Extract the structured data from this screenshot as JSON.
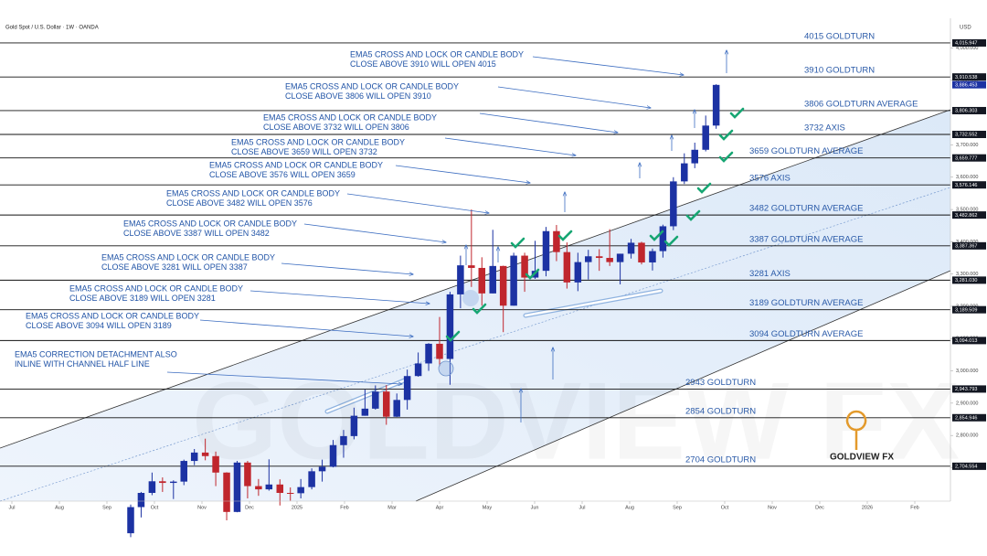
{
  "chart_data": {
    "type": "candlestick",
    "title": "Gold Spot / U.S. Dollar · 1W · OANDA",
    "y_axis_label": "USD",
    "brand": "GOLDVIEW FX",
    "up_color": "#1c32a3",
    "down_color": "#c0262d",
    "xlim": [
      -0.25,
      19.75
    ],
    "xticks": [
      {
        "value": 0,
        "label": "Jul"
      },
      {
        "value": 1,
        "label": "Aug"
      },
      {
        "value": 2,
        "label": "Sep"
      },
      {
        "value": 3,
        "label": "Oct"
      },
      {
        "value": 4,
        "label": "Nov"
      },
      {
        "value": 5,
        "label": "Dec"
      },
      {
        "value": 6,
        "label": "2025"
      },
      {
        "value": 7,
        "label": "Feb"
      },
      {
        "value": 8,
        "label": "Mar"
      },
      {
        "value": 9,
        "label": "Apr"
      },
      {
        "value": 10,
        "label": "May"
      },
      {
        "value": 11,
        "label": "Jun"
      },
      {
        "value": 12,
        "label": "Jul"
      },
      {
        "value": 13,
        "label": "Aug"
      },
      {
        "value": 14,
        "label": "Sep"
      },
      {
        "value": 15,
        "label": "Oct"
      },
      {
        "value": 16,
        "label": "Nov"
      },
      {
        "value": 17,
        "label": "Dec"
      },
      {
        "value": 18,
        "label": "2026"
      },
      {
        "value": 19,
        "label": "Feb"
      }
    ],
    "ylim": [
      2605,
      4064
    ],
    "yticks": [
      {
        "value": 2700,
        "label": "2,700.000"
      },
      {
        "value": 2800,
        "label": "2,800.000"
      },
      {
        "value": 2900,
        "label": "2,900.000"
      },
      {
        "value": 3000,
        "label": "3,000.000"
      },
      {
        "value": 3100,
        "label": "3,100.000"
      },
      {
        "value": 3200,
        "label": "3,200.000"
      },
      {
        "value": 3300,
        "label": "3,300.000"
      },
      {
        "value": 3400,
        "label": "3,400.000"
      },
      {
        "value": 3500,
        "label": "3,500.000"
      },
      {
        "value": 3600,
        "label": "3,600.000"
      },
      {
        "value": 3700,
        "label": "3,700.000"
      },
      {
        "value": 3800,
        "label": "3,800.000"
      },
      {
        "value": 3900,
        "label": "3,900.000"
      },
      {
        "value": 4000,
        "label": "4,000.000"
      }
    ],
    "x": [
      2.5,
      2.72,
      2.95,
      3.17,
      3.4,
      3.62,
      3.84,
      4.07,
      4.29,
      4.52,
      4.74,
      4.96,
      5.19,
      5.41,
      5.64,
      5.86,
      6.08,
      6.31,
      6.53,
      6.76,
      6.98,
      7.2,
      7.43,
      7.65,
      7.88,
      8.1,
      8.32,
      8.55,
      8.77,
      9.0,
      9.22,
      9.44,
      9.67,
      9.89,
      10.12,
      10.34,
      10.56,
      10.79,
      11.01,
      11.24,
      11.46,
      11.68,
      11.91,
      12.13,
      12.36,
      12.58,
      12.8,
      13.03,
      13.25,
      13.48,
      13.7,
      13.92,
      14.15,
      14.37,
      14.6,
      14.82
    ],
    "open": [
      2497,
      2578,
      2622,
      2658,
      2653,
      2657,
      2721,
      2747,
      2736,
      2685,
      2563,
      2716,
      2643,
      2633,
      2648,
      2622,
      2621,
      2640,
      2689,
      2703,
      2770,
      2798,
      2861,
      2883,
      2936,
      2858,
      2910,
      2984,
      3023,
      3084,
      3037,
      3237,
      3327,
      3319,
      3240,
      3325,
      3202,
      3357,
      3289,
      3310,
      3433,
      3368,
      3274,
      3337,
      3355,
      3350,
      3337,
      3363,
      3397,
      3336,
      3371,
      3448,
      3587,
      3643,
      3685,
      3760
    ],
    "high": [
      2586,
      2625,
      2685,
      2670,
      2661,
      2725,
      2758,
      2790,
      2750,
      2686,
      2721,
      2721,
      2665,
      2726,
      2664,
      2639,
      2665,
      2698,
      2725,
      2786,
      2817,
      2886,
      2942,
      2955,
      2956,
      2930,
      3004,
      3057,
      3086,
      3167,
      3245,
      3357,
      3500,
      3352,
      3437,
      3326,
      3366,
      3366,
      3403,
      3446,
      3452,
      3398,
      3366,
      3375,
      3377,
      3439,
      3363,
      3409,
      3400,
      3379,
      3453,
      3600,
      3674,
      3707,
      3791,
      3888
    ],
    "low": [
      2485,
      2546,
      2615,
      2625,
      2603,
      2646,
      2708,
      2723,
      2643,
      2537,
      2562,
      2605,
      2613,
      2629,
      2583,
      2598,
      2605,
      2633,
      2657,
      2701,
      2731,
      2788,
      2861,
      2880,
      2833,
      2857,
      2880,
      2982,
      3000,
      3015,
      2957,
      3194,
      3260,
      3202,
      3240,
      3120,
      3202,
      3245,
      3285,
      3293,
      3340,
      3255,
      3247,
      3283,
      3310,
      3325,
      3268,
      3348,
      3330,
      3311,
      3351,
      3436,
      3579,
      3628,
      3680,
      3750
    ],
    "close": [
      2578,
      2622,
      2658,
      2653,
      2657,
      2721,
      2747,
      2736,
      2685,
      2563,
      2716,
      2643,
      2633,
      2648,
      2622,
      2621,
      2640,
      2689,
      2703,
      2770,
      2798,
      2861,
      2883,
      2936,
      2858,
      2910,
      2984,
      3023,
      3084,
      3037,
      3237,
      3327,
      3319,
      3240,
      3325,
      3202,
      3357,
      3289,
      3310,
      3433,
      3368,
      3274,
      3337,
      3355,
      3350,
      3337,
      3363,
      3397,
      3336,
      3371,
      3448,
      3587,
      3643,
      3685,
      3760,
      3886
    ],
    "levels": [
      {
        "name": "4015 GOLDTURN",
        "price": 4015.947,
        "price_label": "4,015.947"
      },
      {
        "name": "3910 GOLDTURN",
        "price": 3910.538,
        "price_label": "3,910.538"
      },
      {
        "name": "3806 GOLDTURN AVERAGE",
        "price": 3806.303,
        "price_label": "3,806.303"
      },
      {
        "name": "3732 AXIS",
        "price": 3732.552,
        "price_label": "3,732.552"
      },
      {
        "name": "3659 GOLDTURN AVERAGE",
        "price": 3659.777,
        "price_label": "3,659.777"
      },
      {
        "name": "3576 AXIS",
        "price": 3576.146,
        "price_label": "3,576.146"
      },
      {
        "name": "3482 GOLDTURN AVERAGE",
        "price": 3482.862,
        "price_label": "3,482.862"
      },
      {
        "name": "3387 GOLDTURN AVERAGE",
        "price": 3387.367,
        "price_label": "3,387.367"
      },
      {
        "name": "3281 AXIS",
        "price": 3281.03,
        "price_label": "3,281.030"
      },
      {
        "name": "3189 GOLDTURN AVERAGE",
        "price": 3189.509,
        "price_label": "3,189.509"
      },
      {
        "name": "3094 GOLDTURN AVERAGE",
        "price": 3094.013,
        "price_label": "3,094.013"
      },
      {
        "name": "2943 GOLDTURN",
        "price": 2943.793,
        "price_label": "2,943.793"
      },
      {
        "name": "2854 GOLDTURN",
        "price": 2854.946,
        "price_label": "2,854.946"
      },
      {
        "name": "2704 GOLDTURN",
        "price": 2704.554,
        "price_label": "2,704.554"
      }
    ],
    "last_price": {
      "value": 3886.453,
      "label": "3,886.453"
    },
    "annotations": [
      [
        "EMA5 CROSS AND LOCK OR CANDLE BODY",
        "CLOSE ABOVE 3910 WILL OPEN 4015"
      ],
      [
        "EMA5 CROSS AND LOCK OR CANDLE BODY",
        "CLOSE ABOVE 3806 WILL OPEN 3910"
      ],
      [
        "EMA5 CROSS AND LOCK OR CANDLE BODY",
        "CLOSE ABOVE 3732 WILL OPEN 3806"
      ],
      [
        "EMA5 CROSS AND LOCK OR CANDLE BODY",
        "CLOSE ABOVE 3659 WILL OPEN 3732"
      ],
      [
        "EMA5 CROSS AND LOCK OR CANDLE BODY",
        "CLOSE ABOVE 3576 WILL OPEN 3659"
      ],
      [
        "EMA5 CROSS AND LOCK OR CANDLE BODY",
        "CLOSE ABOVE 3482 WILL OPEN 3576"
      ],
      [
        "EMA5 CROSS AND LOCK OR CANDLE BODY",
        "CLOSE ABOVE 3387 WILL OPEN 3482"
      ],
      [
        "EMA5 CROSS AND LOCK OR CANDLE BODY",
        "CLOSE ABOVE 3281 WILL OPEN 3387"
      ],
      [
        "EMA5 CROSS AND LOCK OR CANDLE BODY",
        "CLOSE ABOVE 3189 WILL OPEN 3281"
      ],
      [
        "EMA5 CROSS AND LOCK OR CANDLE BODY",
        "CLOSE ABOVE 3094 WILL OPEN 3189"
      ],
      [
        "EMA5 CORRECTION DETACHMENT ALSO",
        "INLINE WITH CHANNEL HALF LINE"
      ]
    ]
  }
}
